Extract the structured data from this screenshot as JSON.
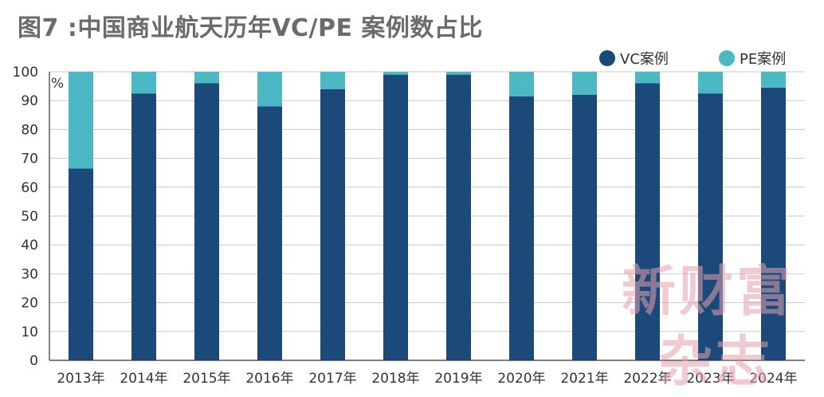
{
  "title": "图7 :中国商业航天历年VC/PE 案例数占比",
  "watermark": {
    "line1": "新财富",
    "line2": "杂志"
  },
  "colors": {
    "vc": "#1b4a7a",
    "pe": "#4cb8c4",
    "grid": "#c8c8c8",
    "axis": "#333333"
  },
  "chart_data": {
    "type": "bar",
    "stacked": true,
    "unit_label": "%",
    "categories": [
      "2013年",
      "2014年",
      "2015年",
      "2016年",
      "2017年",
      "2018年",
      "2019年",
      "2020年",
      "2021年",
      "2022年",
      "2023年",
      "2024年"
    ],
    "series": [
      {
        "name": "VC案例",
        "values": [
          66.5,
          92.5,
          96.0,
          88.0,
          94.0,
          99.0,
          99.0,
          91.5,
          92.0,
          96.0,
          92.5,
          94.5
        ]
      },
      {
        "name": "PE案例",
        "values": [
          33.5,
          7.5,
          4.0,
          12.0,
          6.0,
          1.0,
          1.0,
          8.5,
          8.0,
          4.0,
          7.5,
          5.5
        ]
      }
    ],
    "ylim": [
      0,
      100
    ],
    "yticks": [
      0,
      10,
      20,
      30,
      40,
      50,
      60,
      70,
      80,
      90,
      100
    ],
    "grid": true,
    "legend_position": "top-right",
    "xlabel": "",
    "ylabel": "%"
  }
}
